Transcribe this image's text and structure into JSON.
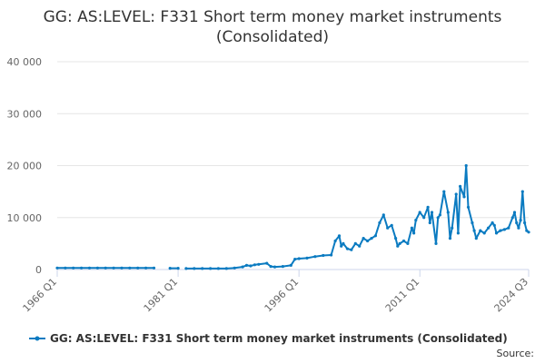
{
  "colors": {
    "series": "#0b7bc1"
  },
  "chart_data": {
    "type": "line",
    "title_lines": [
      "GG: AS:LEVEL: F331 Short term money market instruments",
      "(Consolidated)"
    ],
    "xlabel": "",
    "ylabel": "",
    "ylim": [
      0,
      40000
    ],
    "yticks": [
      0,
      10000,
      20000,
      30000,
      40000
    ],
    "ytick_labels": [
      "0",
      "10 000",
      "20 000",
      "30 000",
      "40 000"
    ],
    "xlim": [
      1966.0,
      2024.5
    ],
    "xticks": [
      1966.0,
      1981.0,
      1996.0,
      2011.0,
      2024.5
    ],
    "xtick_labels": [
      "1966 Q1",
      "1981 Q1",
      "1996 Q1",
      "2011 Q1",
      "2024 Q3"
    ],
    "grid": true,
    "legend_position": "bottom",
    "series": [
      {
        "name": "GG: AS:LEVEL: F331 Short term money market instruments (Consolidated)",
        "segments": [
          [
            [
              1966.0,
              300
            ],
            [
              1967.0,
              300
            ],
            [
              1968.0,
              300
            ],
            [
              1969.0,
              300
            ],
            [
              1970.0,
              300
            ],
            [
              1971.0,
              300
            ],
            [
              1972.0,
              300
            ],
            [
              1973.0,
              300
            ],
            [
              1974.0,
              300
            ],
            [
              1975.0,
              300
            ],
            [
              1976.0,
              300
            ],
            [
              1977.0,
              300
            ],
            [
              1978.0,
              300
            ]
          ],
          [
            [
              1980.0,
              250
            ],
            [
              1981.0,
              250
            ]
          ],
          [
            [
              1982.0,
              200
            ],
            [
              1983.0,
              200
            ],
            [
              1984.0,
              200
            ],
            [
              1985.0,
              200
            ],
            [
              1986.0,
              200
            ],
            [
              1987.0,
              200
            ],
            [
              1988.0,
              300
            ],
            [
              1989.0,
              500
            ],
            [
              1989.5,
              800
            ],
            [
              1990.0,
              700
            ],
            [
              1990.5,
              900
            ],
            [
              1991.0,
              1000
            ],
            [
              1992.0,
              1200
            ],
            [
              1992.5,
              600
            ],
            [
              1993.0,
              500
            ],
            [
              1994.0,
              600
            ],
            [
              1995.0,
              800
            ],
            [
              1995.5,
              2000
            ],
            [
              1996.0,
              2100
            ],
            [
              1997.0,
              2200
            ],
            [
              1998.0,
              2500
            ],
            [
              1999.0,
              2700
            ],
            [
              2000.0,
              2800
            ],
            [
              2000.5,
              5500
            ],
            [
              2001.0,
              6500
            ],
            [
              2001.25,
              4500
            ],
            [
              2001.5,
              5000
            ],
            [
              2002.0,
              4000
            ],
            [
              2002.5,
              3800
            ],
            [
              2003.0,
              5000
            ],
            [
              2003.5,
              4500
            ],
            [
              2004.0,
              6000
            ],
            [
              2004.5,
              5500
            ],
            [
              2005.0,
              6000
            ],
            [
              2005.5,
              6500
            ],
            [
              2006.0,
              9000
            ],
            [
              2006.5,
              10500
            ],
            [
              2007.0,
              8000
            ],
            [
              2007.5,
              8500
            ],
            [
              2008.0,
              6000
            ],
            [
              2008.25,
              4500
            ],
            [
              2008.5,
              5000
            ],
            [
              2009.0,
              5500
            ],
            [
              2009.5,
              5000
            ],
            [
              2010.0,
              8000
            ],
            [
              2010.25,
              7000
            ],
            [
              2010.5,
              9500
            ],
            [
              2011.0,
              11000
            ],
            [
              2011.5,
              10000
            ],
            [
              2012.0,
              12000
            ],
            [
              2012.25,
              9000
            ],
            [
              2012.5,
              11000
            ],
            [
              2013.0,
              5000
            ],
            [
              2013.25,
              10000
            ],
            [
              2013.5,
              10500
            ],
            [
              2014.0,
              15000
            ],
            [
              2014.5,
              11000
            ],
            [
              2014.75,
              6000
            ],
            [
              2015.0,
              8000
            ],
            [
              2015.5,
              14500
            ],
            [
              2015.75,
              7000
            ],
            [
              2016.0,
              16000
            ],
            [
              2016.5,
              14000
            ],
            [
              2016.75,
              20000
            ],
            [
              2017.0,
              12000
            ],
            [
              2017.5,
              9000
            ],
            [
              2017.75,
              7500
            ],
            [
              2018.0,
              6000
            ],
            [
              2018.5,
              7500
            ],
            [
              2019.0,
              7000
            ],
            [
              2019.5,
              8000
            ],
            [
              2020.0,
              9000
            ],
            [
              2020.25,
              8500
            ],
            [
              2020.5,
              7000
            ],
            [
              2021.0,
              7500
            ],
            [
              2021.5,
              7700
            ],
            [
              2022.0,
              8000
            ],
            [
              2022.5,
              10000
            ],
            [
              2022.75,
              11000
            ],
            [
              2023.0,
              9000
            ],
            [
              2023.25,
              8000
            ],
            [
              2023.5,
              9500
            ],
            [
              2023.75,
              15000
            ],
            [
              2024.0,
              9000
            ],
            [
              2024.25,
              7500
            ],
            [
              2024.5,
              7200
            ]
          ]
        ]
      }
    ]
  },
  "legend": {
    "label": "GG: AS:LEVEL: F331 Short term money market instruments (Consolidated)"
  },
  "footer": {
    "source_label": "Source:"
  }
}
